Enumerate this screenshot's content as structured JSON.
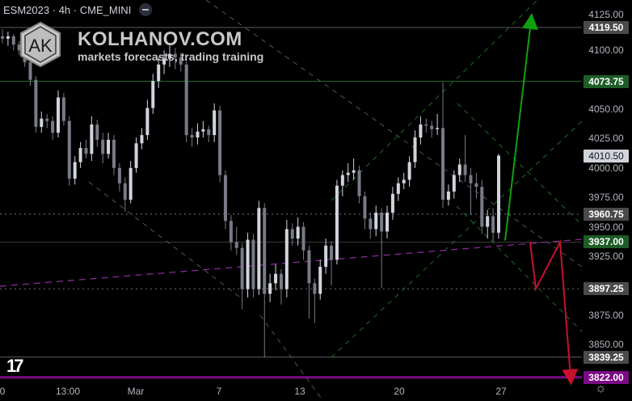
{
  "header": {
    "symbol": "ESM2023",
    "interval": "4h",
    "exchange": "CME_MINI",
    "separator": "·"
  },
  "watermark": {
    "logo_letters": "AK",
    "title": "KOLHANOV.COM",
    "subtitle": "markets forecasts, trading training"
  },
  "colors": {
    "background": "#000000",
    "up_candle": "#d1d4dc",
    "down_candle": "#787b86",
    "green_level": "#1e5d27",
    "magenta_level": "#7b0a86",
    "gray_label": "#4a4a4a",
    "green_arrow": "#11a00e",
    "red_arrow": "#c8102e",
    "last_price": "#d1d4dc"
  },
  "chart_data": {
    "type": "candlestick",
    "ylim": [
      3810,
      4135
    ],
    "y_ticks": [
      "4125.00",
      "4100.00",
      "4050.00",
      "4025.00",
      "4000.00",
      "3975.00",
      "3950.00",
      "3925.00",
      "3875.00",
      "3850.00"
    ],
    "x_ticks": [
      "0",
      "13:00",
      "Mar",
      "7",
      "13",
      "20",
      "27"
    ],
    "levels": [
      {
        "price": 4119.5,
        "label": "4119.50",
        "style": "solid",
        "color": "#5d5d5d",
        "label_bg": "#4a4a4a"
      },
      {
        "price": 4073.75,
        "label": "4073.75",
        "style": "solid",
        "color": "#1e6b2a",
        "label_bg": "#1e5d27"
      },
      {
        "price": 3960.75,
        "label": "3960.75",
        "style": "dotted",
        "color": "#7a7a7a",
        "label_bg": "#4a4a4a"
      },
      {
        "price": 3937.0,
        "label": "3937.00",
        "style": "solid",
        "color": "#3a3a3a",
        "label_bg": "#1e5d27"
      },
      {
        "price": 3897.25,
        "label": "3897.25",
        "style": "dotted",
        "color": "#6a6a6a",
        "label_bg": "#4a4a4a"
      },
      {
        "price": 3839.25,
        "label": "3839.25",
        "style": "solid",
        "color": "#5d5d5d",
        "label_bg": "#4a4a4a"
      },
      {
        "price": 3822.0,
        "label": "3822.00",
        "style": "thick",
        "color": "#7b0a86",
        "label_bg": "#7b0a86"
      }
    ],
    "last_price": {
      "price": 4010.5,
      "label": "4010.50"
    },
    "candles": [
      [
        4112,
        4118,
        4106,
        4110
      ],
      [
        4110,
        4116,
        4104,
        4112
      ],
      [
        4112,
        4114,
        4100,
        4105
      ],
      [
        4105,
        4108,
        4096,
        4100
      ],
      [
        4100,
        4103,
        4086,
        4090
      ],
      [
        4090,
        4094,
        4070,
        4075
      ],
      [
        4075,
        4078,
        4030,
        4035
      ],
      [
        4035,
        4048,
        4030,
        4042
      ],
      [
        4042,
        4046,
        4034,
        4040
      ],
      [
        4040,
        4044,
        4024,
        4030
      ],
      [
        4030,
        4066,
        4026,
        4060
      ],
      [
        4060,
        4064,
        4036,
        4040
      ],
      [
        4040,
        4044,
        3985,
        3991
      ],
      [
        3991,
        4010,
        3986,
        4005
      ],
      [
        4005,
        4022,
        4000,
        4017
      ],
      [
        4017,
        4024,
        4008,
        4012
      ],
      [
        4012,
        4044,
        4006,
        4037
      ],
      [
        4037,
        4041,
        4018,
        4024
      ],
      [
        4024,
        4030,
        4004,
        4012
      ],
      [
        4012,
        4030,
        4008,
        4024
      ],
      [
        4024,
        4028,
        3994,
        4000
      ],
      [
        4000,
        4004,
        3980,
        3987
      ],
      [
        3987,
        3992,
        3963,
        3973
      ],
      [
        3973,
        4006,
        3970,
        4000
      ],
      [
        4000,
        4026,
        3996,
        4021
      ],
      [
        4021,
        4034,
        4016,
        4028
      ],
      [
        4028,
        4058,
        4024,
        4051
      ],
      [
        4051,
        4080,
        4046,
        4074
      ],
      [
        4074,
        4094,
        4068,
        4088
      ],
      [
        4088,
        4100,
        4080,
        4093
      ],
      [
        4093,
        4104,
        4086,
        4097
      ],
      [
        4097,
        4102,
        4084,
        4094
      ],
      [
        4094,
        4098,
        4082,
        4088
      ],
      [
        4088,
        4091,
        4022,
        4028
      ],
      [
        4028,
        4034,
        4018,
        4026
      ],
      [
        4026,
        4038,
        4020,
        4031
      ],
      [
        4031,
        4040,
        4026,
        4033
      ],
      [
        4033,
        4036,
        4022,
        4028
      ],
      [
        4028,
        4055,
        4022,
        4049
      ],
      [
        4049,
        4053,
        3988,
        3994
      ],
      [
        3994,
        3998,
        3948,
        3955
      ],
      [
        3955,
        3960,
        3930,
        3937
      ],
      [
        3937,
        3950,
        3926,
        3932
      ],
      [
        3932,
        3936,
        3880,
        3897
      ],
      [
        3897,
        3945,
        3890,
        3939
      ],
      [
        3939,
        3944,
        3890,
        3897
      ],
      [
        3897,
        3972,
        3892,
        3966
      ],
      [
        3966,
        3970,
        3839,
        3893
      ],
      [
        3893,
        3910,
        3886,
        3902
      ],
      [
        3902,
        3918,
        3896,
        3910
      ],
      [
        3910,
        3914,
        3884,
        3897
      ],
      [
        3897,
        3956,
        3890,
        3948
      ],
      [
        3948,
        3953,
        3934,
        3940
      ],
      [
        3940,
        3958,
        3934,
        3950
      ],
      [
        3950,
        3954,
        3922,
        3930
      ],
      [
        3930,
        3934,
        3872,
        3902
      ],
      [
        3902,
        3906,
        3868,
        3893
      ],
      [
        3893,
        3922,
        3888,
        3916
      ],
      [
        3916,
        3940,
        3910,
        3934
      ],
      [
        3934,
        3938,
        3900,
        3922
      ],
      [
        3922,
        3990,
        3918,
        3985
      ],
      [
        3985,
        3998,
        3976,
        3994
      ],
      [
        3994,
        4004,
        3988,
        3996
      ],
      [
        3996,
        4008,
        3990,
        3998
      ],
      [
        3998,
        4002,
        3970,
        3976
      ],
      [
        3976,
        3980,
        3948,
        3957
      ],
      [
        3957,
        3962,
        3940,
        3948
      ],
      [
        3948,
        3968,
        3942,
        3962
      ],
      [
        3962,
        3966,
        3898,
        3946
      ],
      [
        3946,
        3968,
        3940,
        3962
      ],
      [
        3962,
        3984,
        3956,
        3978
      ],
      [
        3978,
        3992,
        3972,
        3987
      ],
      [
        3987,
        3996,
        3982,
        3990
      ],
      [
        3990,
        4010,
        3984,
        4005
      ],
      [
        4005,
        4032,
        4000,
        4026
      ],
      [
        4026,
        4044,
        4020,
        4037
      ],
      [
        4037,
        4042,
        4030,
        4036
      ],
      [
        4036,
        4040,
        4026,
        4033
      ],
      [
        4033,
        4046,
        4028,
        4034
      ],
      [
        4034,
        4073,
        3966,
        3973
      ],
      [
        3973,
        3986,
        3968,
        3980
      ],
      [
        3980,
        3998,
        3974,
        3994
      ],
      [
        3994,
        4008,
        3988,
        4003
      ],
      [
        4003,
        4028,
        3988,
        3994
      ],
      [
        3994,
        4000,
        3960,
        3987
      ],
      [
        3987,
        3996,
        3974,
        3984
      ],
      [
        3984,
        3990,
        3944,
        3950
      ],
      [
        3950,
        3964,
        3940,
        3959
      ],
      [
        3959,
        3966,
        3937,
        3945
      ],
      [
        3945,
        4012,
        3940,
        4010.5
      ]
    ],
    "forecast": {
      "green_arrow_target": 4119.5,
      "red_path": [
        3937.0,
        3897.25,
        3937.0,
        3822.0
      ]
    }
  }
}
